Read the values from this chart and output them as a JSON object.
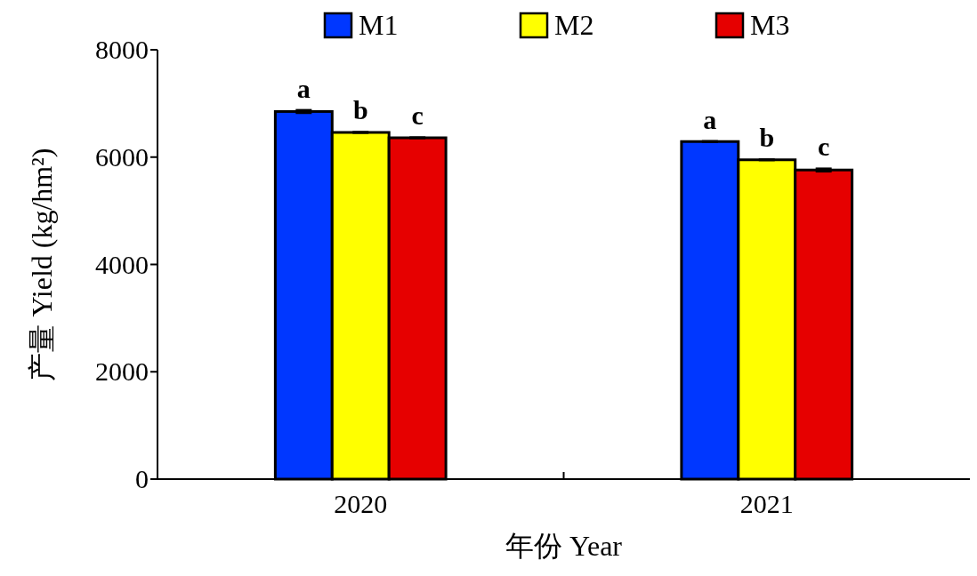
{
  "chart_data": {
    "type": "bar",
    "xlabel": "年份 Year",
    "ylabel": "产量 Yield (kg/hm²)",
    "categories": [
      "2020",
      "2021"
    ],
    "series": [
      {
        "name": "M1",
        "color": "#0037ff",
        "values": [
          6850,
          6290
        ],
        "errors": [
          30,
          10
        ]
      },
      {
        "name": "M2",
        "color": "#ffff00",
        "values": [
          6460,
          5950
        ],
        "errors": [
          10,
          10
        ]
      },
      {
        "name": "M3",
        "color": "#e60000",
        "values": [
          6360,
          5760
        ],
        "errors": [
          10,
          30
        ]
      }
    ],
    "annotations": [
      "a",
      "b",
      "c",
      "a",
      "b",
      "c"
    ],
    "ylim": [
      0,
      8000
    ],
    "yticks": [
      0,
      2000,
      4000,
      6000,
      8000
    ],
    "grid": false,
    "legend": "top"
  }
}
